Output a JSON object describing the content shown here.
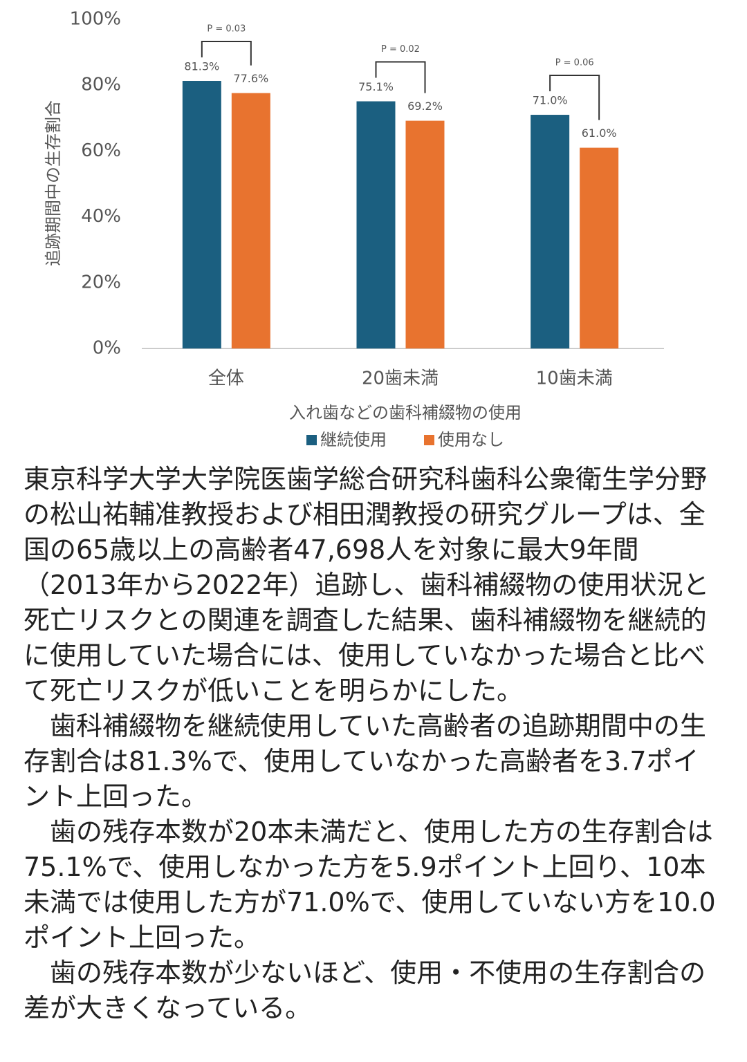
{
  "chart_data": {
    "type": "bar",
    "ylabel": "追跡期間中の生存割合",
    "xlabel": "入れ歯などの歯科補綴物の使用",
    "categories": [
      "全体",
      "20歯未満",
      "10歯未満"
    ],
    "series": [
      {
        "name": "継続使用",
        "color": "#1b5f80",
        "values": [
          81.3,
          75.1,
          71.0
        ],
        "value_labels": [
          "81.3%",
          "75.1%",
          "71.0%"
        ]
      },
      {
        "name": "使用なし",
        "color": "#e8732f",
        "values": [
          77.6,
          69.2,
          61.0
        ],
        "value_labels": [
          "77.6%",
          "69.2%",
          "61.0%"
        ]
      }
    ],
    "p_values": [
      "P = 0.03",
      "P = 0.02",
      "P = 0.06"
    ],
    "ylim": [
      0,
      100
    ],
    "yticks": [
      {
        "value": 0,
        "label": "0%"
      },
      {
        "value": 20,
        "label": "20%"
      },
      {
        "value": 40,
        "label": "40%"
      },
      {
        "value": 60,
        "label": "60%"
      },
      {
        "value": 80,
        "label": "80%"
      },
      {
        "value": 100,
        "label": "100%"
      }
    ],
    "grid": false,
    "legend": "bottom"
  },
  "article": {
    "paragraphs": [
      "東京科学大学大学院医歯学総合研究科歯科公衆衛生学分野の松山祐輔准教授および相田潤教授の研究グループは、全国の65歳以上の高齢者47,698人を対象に最大9年間（2013年から2022年）追跡し、歯科補綴物の使用状況と死亡リスクとの関連を調査した結果、歯科補綴物を継続的に使用していた場合には、使用していなかった場合と比べて死亡リスクが低いことを明らかにした。",
      "歯科補綴物を継続使用していた高齢者の追跡期間中の生存割合は81.3%で、使用していなかった高齢者を3.7ポイント上回った。",
      "歯の残存本数が20本未満だと、使用した方の生存割合は75.1%で、使用しなかった方を5.9ポイント上回り、10本未満では使用した方が71.0%で、使用していない方を10.0ポイント上回った。",
      "歯の残存本数が少ないほど、使用・不使用の生存割合の差が大きくなっている。"
    ]
  }
}
